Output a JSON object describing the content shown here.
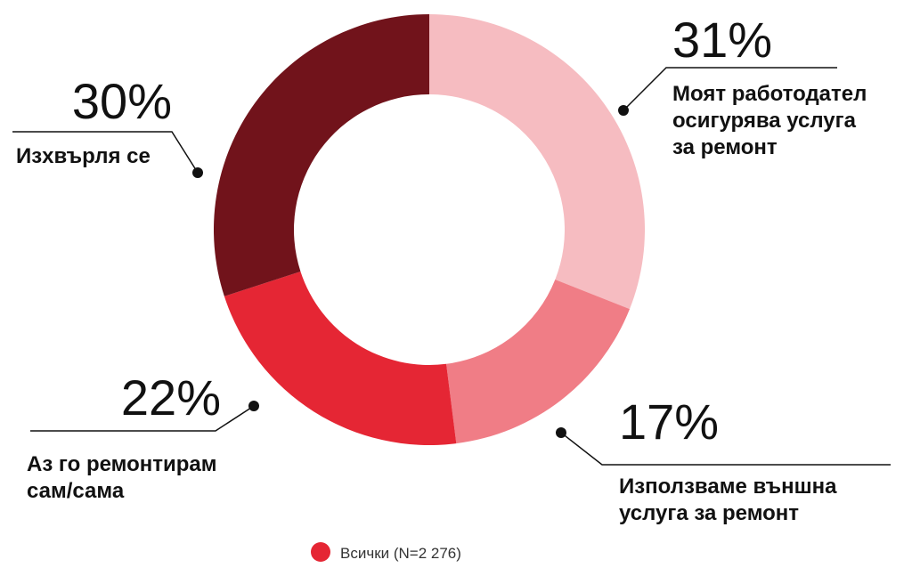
{
  "chart_data": {
    "type": "pie",
    "donut": true,
    "slices": [
      {
        "label_lines": [
          "Моят работодател",
          "осигурява услуга",
          "за ремонт"
        ],
        "value": 31,
        "display": "31%",
        "color": "#f6bcc1"
      },
      {
        "label_lines": [
          "Използваме външна",
          "услуга за ремонт"
        ],
        "value": 17,
        "display": "17%",
        "color": "#f07d86"
      },
      {
        "label_lines": [
          "Аз го ремонтирам",
          "сам/сама"
        ],
        "value": 22,
        "display": "22%",
        "color": "#e52634"
      },
      {
        "label_lines": [
          "Изхвърля се"
        ],
        "value": 30,
        "display": "30%",
        "color": "#71131b"
      }
    ],
    "legend": {
      "label": "Всички (N=2 276)",
      "color": "#e52634",
      "position": "bottom-center"
    }
  }
}
